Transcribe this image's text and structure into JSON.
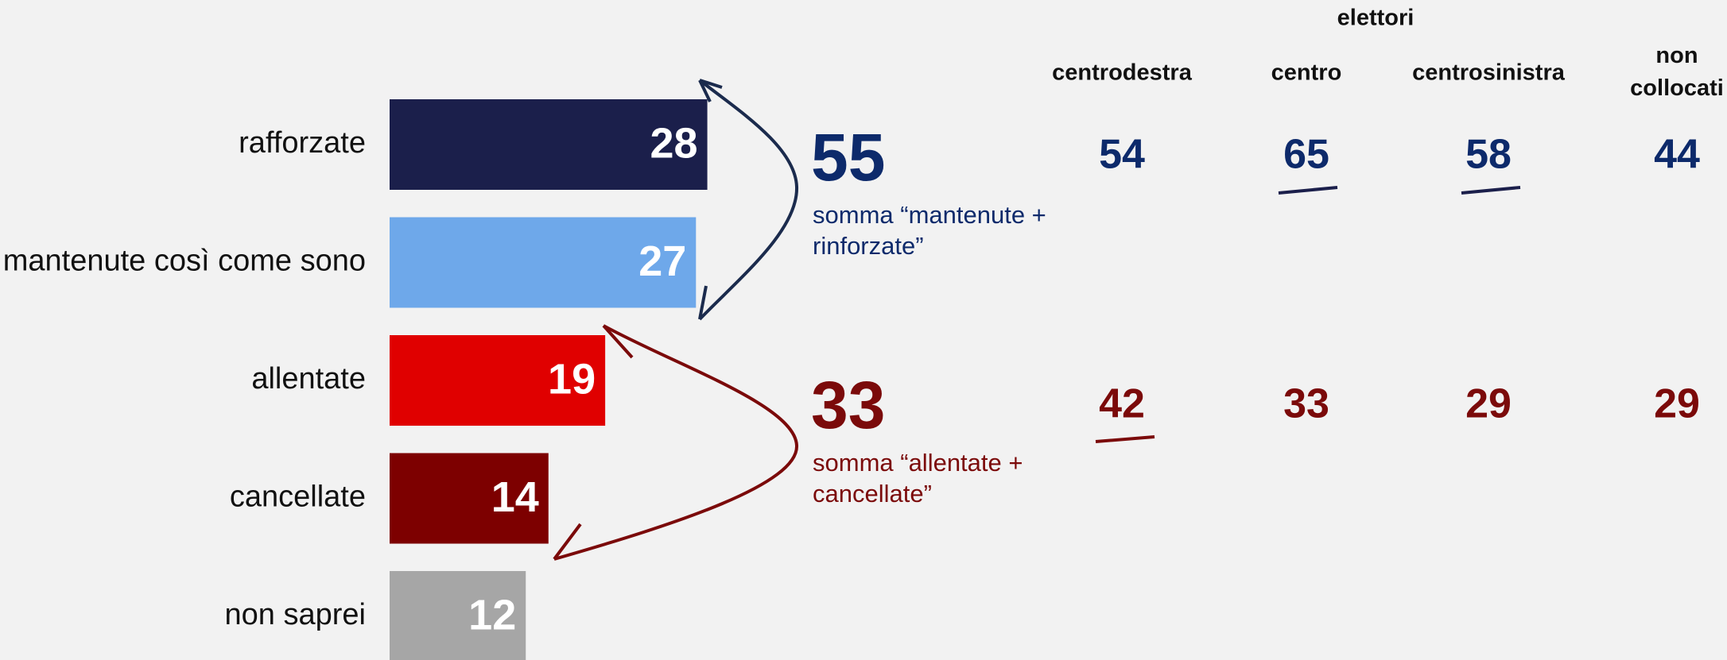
{
  "chart_data": {
    "type": "bar",
    "categories": [
      "rafforzate",
      "mantenute così come sono",
      "allentate",
      "cancellate",
      "non saprei"
    ],
    "values": [
      28,
      27,
      19,
      14,
      12
    ],
    "colors": [
      "#1b1f4b",
      "#6ea8ea",
      "#e00000",
      "#7d0000",
      "#a6a6a6"
    ],
    "sums": [
      {
        "value": 55,
        "label": [
          "somma “mantenute +",
          "rinforzate”"
        ],
        "color": "#0d2a6b"
      },
      {
        "value": 33,
        "label": [
          "somma “allentate +",
          "cancellate”"
        ],
        "color": "#7b0a0a"
      }
    ],
    "breakdown": {
      "title": "elettori",
      "columns": [
        "centrodestra",
        "centro",
        "centrosinistra",
        "non collocati"
      ],
      "rows": [
        {
          "values": [
            54,
            65,
            58,
            44
          ],
          "color": "#0d2a6b"
        },
        {
          "values": [
            42,
            33,
            29,
            29
          ],
          "color": "#7b0a0a"
        }
      ]
    }
  }
}
